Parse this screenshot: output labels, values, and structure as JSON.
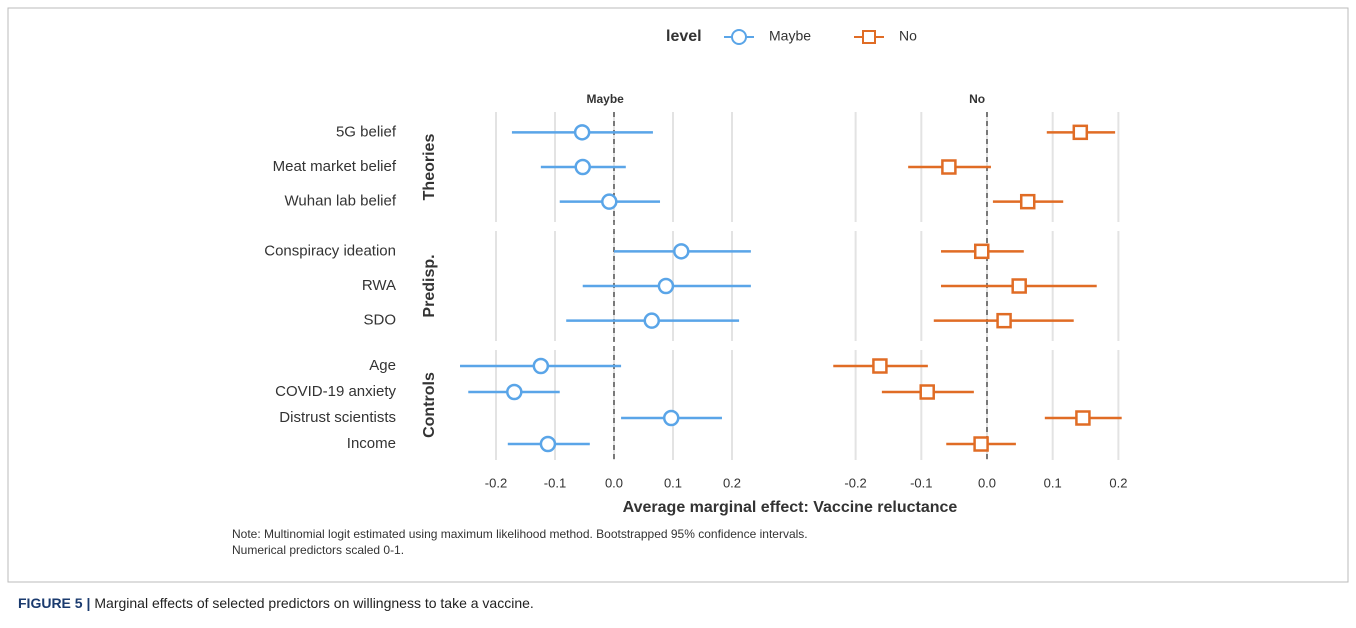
{
  "chart_data": {
    "type": "forest",
    "legend_title": "level",
    "xlabel": "Average marginal effect: Vaccine reluctance",
    "xlim": [
      -0.27,
      0.24
    ],
    "xticks": [
      -0.2,
      -0.1,
      {
        "value": 0,
        "label": "0.0"
      },
      0.1,
      0.2
    ],
    "vline": 0,
    "grid": true,
    "groups": [
      {
        "label": "Theories",
        "categories": [
          "5G belief",
          "Meat market belief",
          "Wuhan lab belief"
        ]
      },
      {
        "label": "Predisp.",
        "categories": [
          "Conspiracy ideation",
          "RWA",
          "SDO"
        ]
      },
      {
        "label": "Controls",
        "categories": [
          "Age",
          "COVID-19 anxiety",
          "Distrust scientists",
          "Income"
        ]
      }
    ],
    "series": [
      {
        "name": "Maybe",
        "color": "#5aa5e8",
        "marker": "circle",
        "values": [
          -0.054,
          -0.053,
          -0.008,
          0.114,
          0.088,
          0.064,
          -0.124,
          -0.169,
          0.097,
          -0.112
        ],
        "lower": [
          -0.173,
          -0.124,
          -0.092,
          0.0,
          -0.053,
          -0.081,
          -0.261,
          -0.247,
          0.012,
          -0.18
        ],
        "upper": [
          0.066,
          0.02,
          0.078,
          0.232,
          0.232,
          0.212,
          0.012,
          -0.092,
          0.183,
          -0.041
        ]
      },
      {
        "name": "No",
        "color": "#e06c25",
        "marker": "square",
        "values": [
          0.142,
          -0.058,
          0.062,
          -0.008,
          0.049,
          0.026,
          -0.163,
          -0.091,
          0.146,
          -0.009
        ],
        "lower": [
          0.091,
          -0.12,
          0.009,
          -0.07,
          -0.07,
          -0.081,
          -0.234,
          -0.16,
          0.088,
          -0.062
        ],
        "upper": [
          0.195,
          0.006,
          0.116,
          0.056,
          0.167,
          0.132,
          -0.09,
          -0.02,
          0.205,
          0.044
        ]
      }
    ],
    "note": [
      "Note: Multinomial logit estimated using maximum likelihood method.  Bootstrapped 95% confidence intervals.",
      "Numerical predictors scaled 0-1."
    ]
  },
  "caption": {
    "label": "FIGURE 5 |",
    "text": "Marginal effects of selected predictors on willingness to take a vaccine."
  }
}
